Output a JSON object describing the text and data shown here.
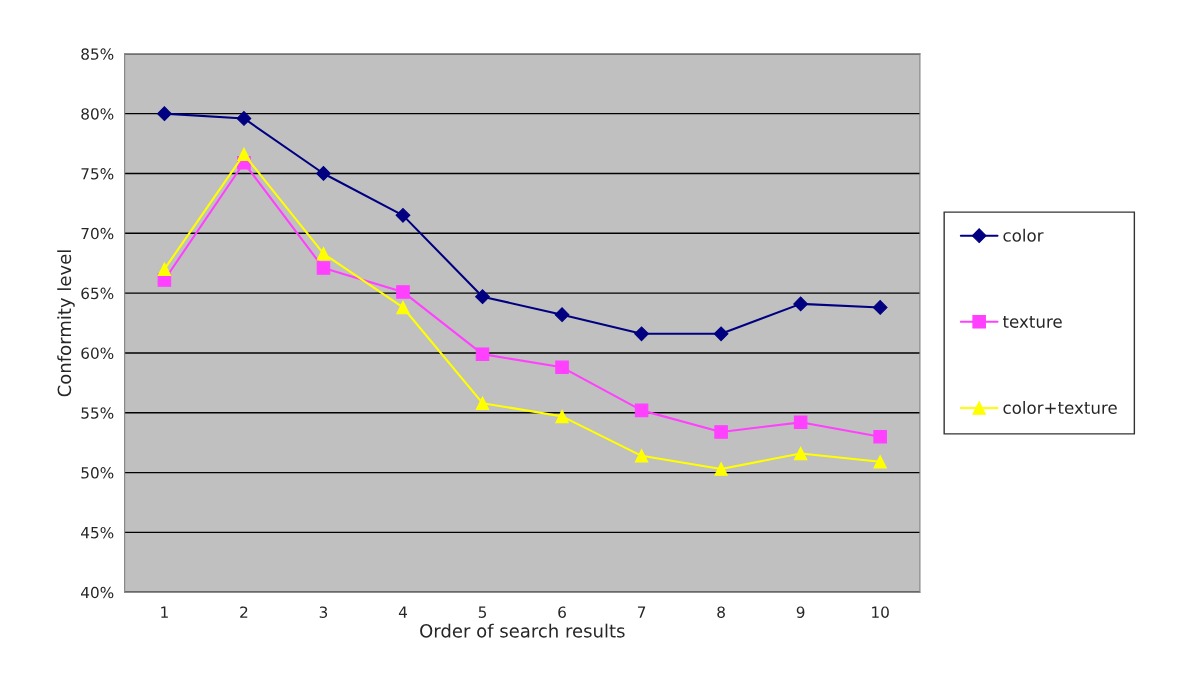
{
  "chart_data": {
    "type": "line",
    "xlabel": "Order of search results",
    "ylabel": "Conformity level",
    "categories": [
      "1",
      "2",
      "3",
      "4",
      "5",
      "6",
      "7",
      "8",
      "9",
      "10"
    ],
    "series": [
      {
        "name": "color",
        "color": "#000080",
        "marker": "diamond",
        "values": [
          80.0,
          79.6,
          75.0,
          71.5,
          64.7,
          63.2,
          61.6,
          61.6,
          64.1,
          63.8
        ]
      },
      {
        "name": "texture",
        "color": "#ff40ff",
        "marker": "square",
        "values": [
          66.1,
          75.9,
          67.1,
          65.1,
          59.9,
          58.8,
          55.2,
          53.4,
          54.2,
          53.0
        ]
      },
      {
        "name": "color+texture",
        "color": "#ffff00",
        "marker": "triangle",
        "values": [
          67.0,
          76.6,
          68.3,
          63.8,
          55.8,
          54.7,
          51.4,
          50.3,
          51.6,
          50.9
        ]
      }
    ],
    "ylim": [
      40,
      85
    ],
    "yticks": [
      {
        "value": 40,
        "label": "40%"
      },
      {
        "value": 45,
        "label": "45%"
      },
      {
        "value": 50,
        "label": "50%"
      },
      {
        "value": 55,
        "label": "55%"
      },
      {
        "value": 60,
        "label": "60%"
      },
      {
        "value": 65,
        "label": "65%"
      },
      {
        "value": 70,
        "label": "70%"
      },
      {
        "value": 75,
        "label": "75%"
      },
      {
        "value": 80,
        "label": "80%"
      },
      {
        "value": 85,
        "label": "85%"
      }
    ],
    "grid": "y",
    "legend": "right"
  }
}
